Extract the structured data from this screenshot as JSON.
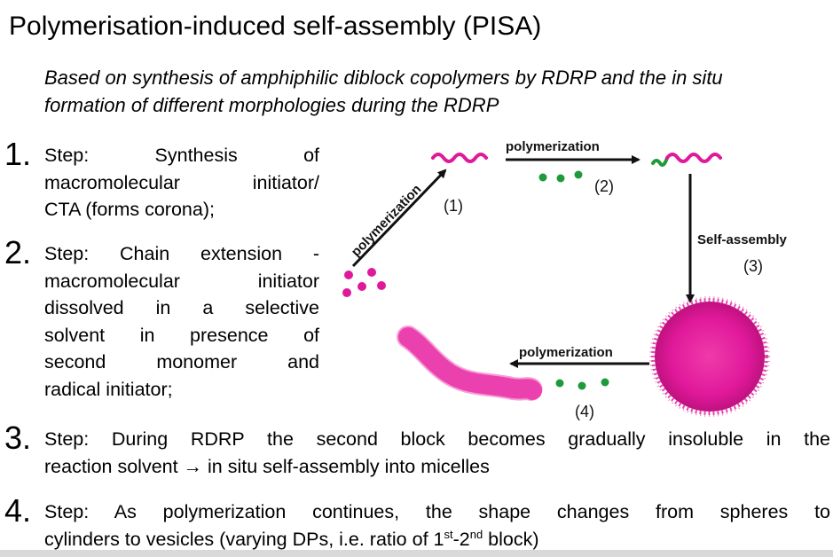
{
  "title": "Polymerisation-induced self-assembly (PISA)",
  "subtitle": "Based on synthesis of amphiphilic diblock copolymers by RDRP and the in situ formation of different morphologies during the RDRP",
  "steps": [
    {
      "number": "1.",
      "lines": [
        "Step: Synthesis of",
        "macromolecular initiator/",
        "CTA (forms corona);"
      ]
    },
    {
      "number": "2.",
      "lines": [
        "Step: Chain extension -",
        "macromolecular initiator",
        "dissolved in a selective",
        "solvent in presence of",
        "second monomer and",
        "radical initiator;"
      ]
    },
    {
      "number": "3.",
      "line1": "Step: During RDRP the second block becomes gradually insoluble in the",
      "line2": "reaction solvent → in situ self-assembly into micelles"
    },
    {
      "number": "4.",
      "line1": "Step: As polymerization continues, the shape changes from spheres to",
      "line2_pre": "cylinders to vesicles (varying DPs, i.e. ratio of 1",
      "sup1": "st",
      "line2_mid": "-2",
      "sup2": "nd",
      "line2_post": " block)"
    }
  ],
  "scheme": {
    "label_polymerization_diag": "polymerization",
    "label_polymerization_top": "polymerization",
    "label_self_assembly": "Self-assembly",
    "label_polymerization_bottom": "polymerization",
    "step_labels": [
      "(1)",
      "(2)",
      "(3)",
      "(4)"
    ],
    "colors": {
      "magenta": "#e0199a",
      "green": "#1f9a3a",
      "arrow": "#111111"
    }
  }
}
